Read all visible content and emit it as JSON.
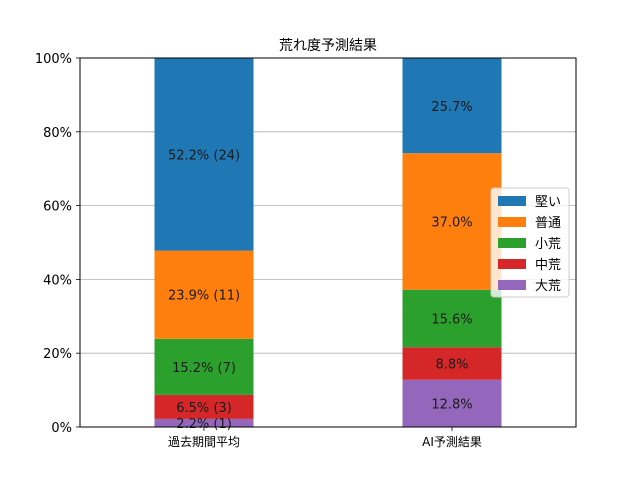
{
  "chart_data": {
    "type": "bar",
    "stacked": true,
    "title": "荒れ度予測結果",
    "xlabel": "",
    "ylabel": "",
    "categories": [
      "過去期間平均",
      "AI予測結果"
    ],
    "ylim": [
      0,
      100
    ],
    "yticks": [
      0,
      20,
      40,
      60,
      80,
      100
    ],
    "ytick_labels": [
      "0%",
      "20%",
      "40%",
      "60%",
      "80%",
      "100%"
    ],
    "grid": true,
    "legend_position": "center-right",
    "series": [
      {
        "name": "大荒",
        "color": "#9467bd",
        "values": [
          2.2,
          12.8
        ],
        "labels": [
          "2.2% (1)",
          "12.8%"
        ]
      },
      {
        "name": "中荒",
        "color": "#d62728",
        "values": [
          6.5,
          8.8
        ],
        "labels": [
          "6.5% (3)",
          "8.8%"
        ]
      },
      {
        "name": "小荒",
        "color": "#2ca02c",
        "values": [
          15.2,
          15.6
        ],
        "labels": [
          "15.2% (7)",
          "15.6%"
        ]
      },
      {
        "name": "普通",
        "color": "#ff7f0e",
        "values": [
          23.9,
          37.0
        ],
        "labels": [
          "23.9% (11)",
          "37.0%"
        ]
      },
      {
        "name": "堅い",
        "color": "#1f77b4",
        "values": [
          52.2,
          25.7
        ],
        "labels": [
          "52.2% (24)",
          "25.7%"
        ]
      }
    ],
    "legend_order": [
      "堅い",
      "普通",
      "小荒",
      "中荒",
      "大荒"
    ]
  }
}
